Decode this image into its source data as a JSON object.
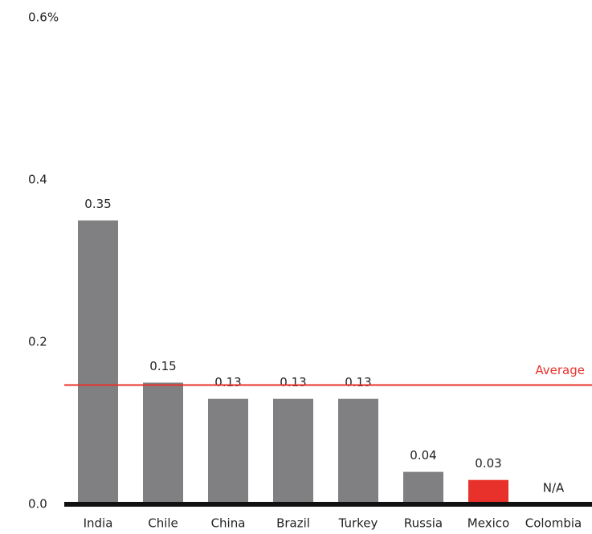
{
  "chart_data": {
    "type": "bar",
    "categories": [
      "India",
      "Chile",
      "China",
      "Brazil",
      "Turkey",
      "Russia",
      "Mexico",
      "Colombia"
    ],
    "values": [
      0.35,
      0.15,
      0.13,
      0.13,
      0.13,
      0.04,
      0.03,
      null
    ],
    "value_labels": [
      "0.35",
      "0.15",
      "0.13",
      "0.13",
      "0.13",
      "0.04",
      "0.03",
      "N/A"
    ],
    "colors": [
      "#808083",
      "#808083",
      "#808083",
      "#808083",
      "#808083",
      "#808083",
      "#e8312a",
      "#808083"
    ],
    "ylim": [
      0,
      0.6
    ],
    "yticks": [
      {
        "value": 0,
        "label": "0.0"
      },
      0.2,
      0.4,
      {
        "value": 0.6,
        "label": "0.6%"
      }
    ],
    "grid": false,
    "reference_line": {
      "label": "Average",
      "value": 0.147,
      "color": "#e8312a"
    }
  }
}
